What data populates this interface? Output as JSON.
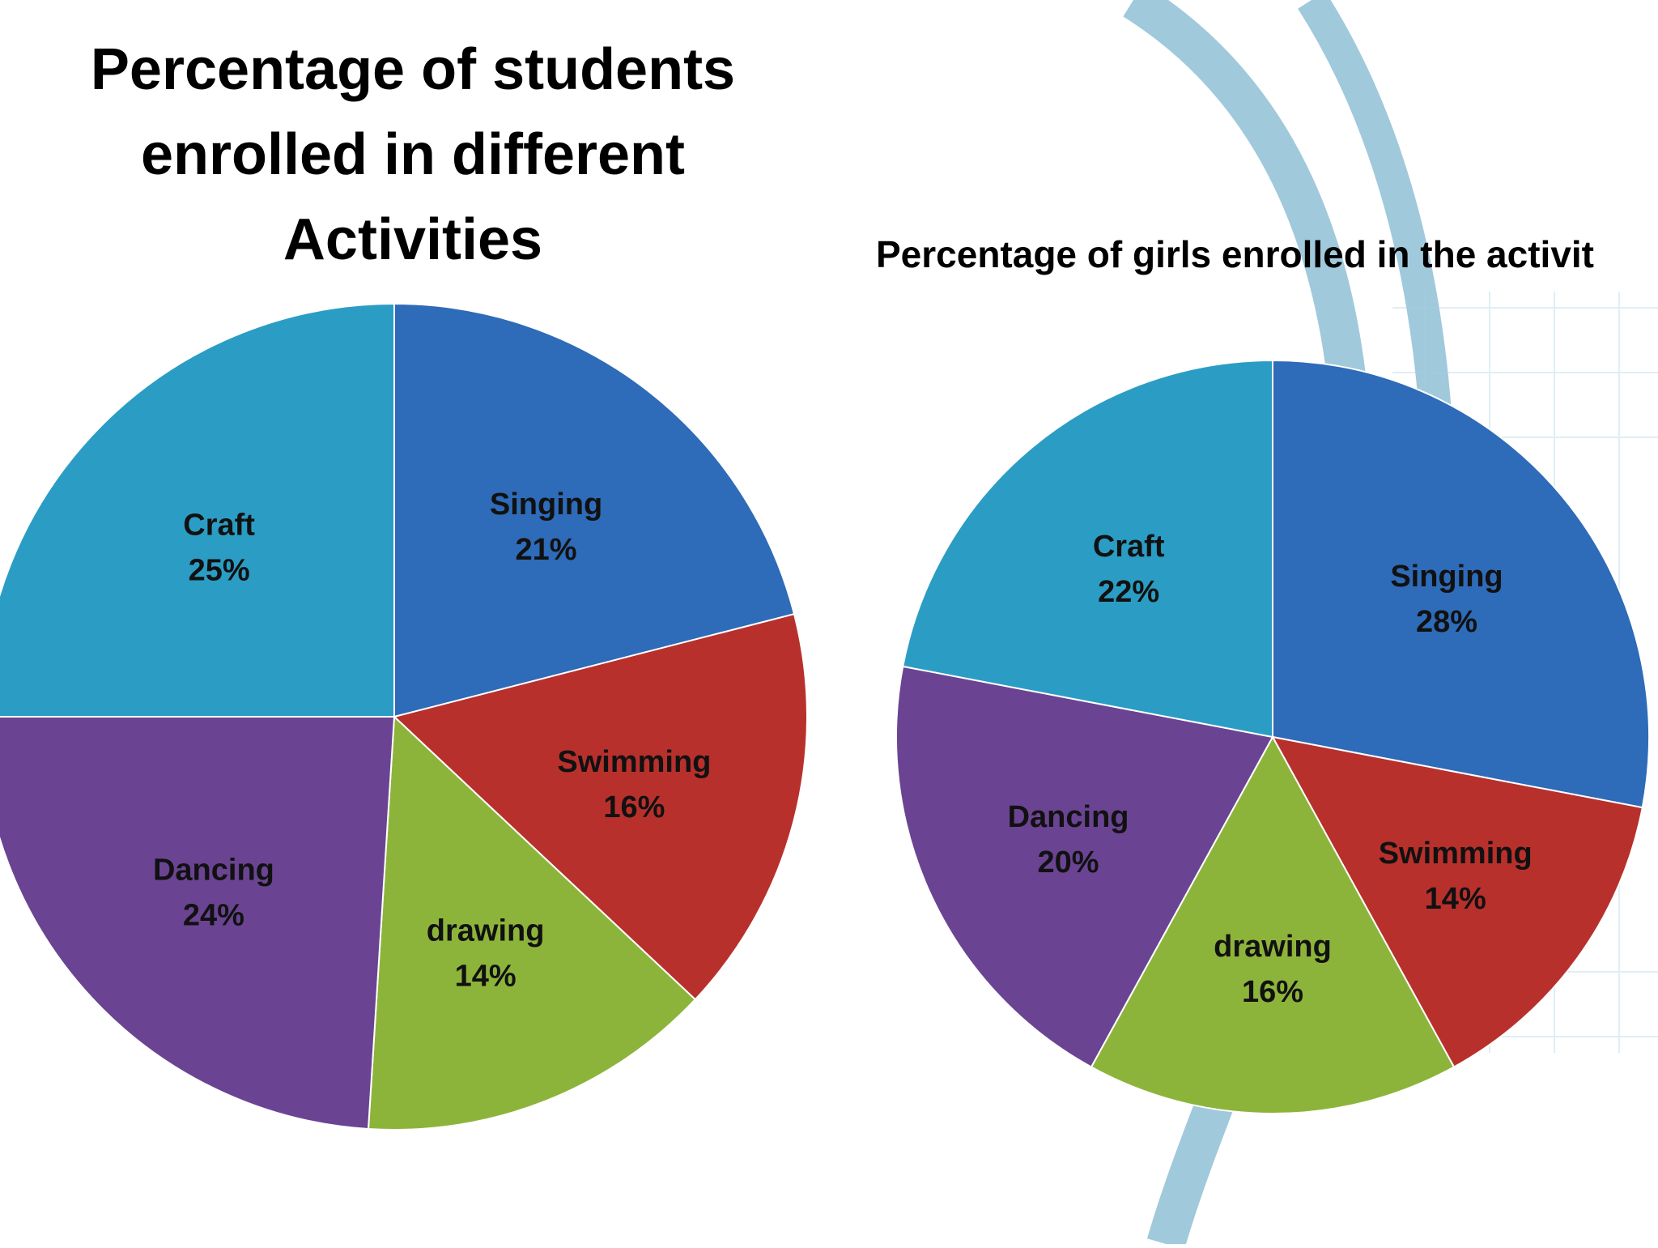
{
  "colors": {
    "singing": "#2e6bb8",
    "swimming": "#b8302c",
    "drawing": "#8db43a",
    "dancing": "#6a4492",
    "craft": "#2b9dc4",
    "background_arc": "#8fbfd6"
  },
  "chart_data": [
    {
      "type": "pie",
      "title_lines": [
        "Percentage of students",
        "enrolled in different",
        "Activities"
      ],
      "slices": [
        {
          "label": "Singing",
          "value": 21,
          "value_text": "21%",
          "color_key": "singing"
        },
        {
          "label": "Swimming",
          "value": 16,
          "value_text": "16%",
          "color_key": "swimming"
        },
        {
          "label": "drawing",
          "value": 14,
          "value_text": "14%",
          "color_key": "drawing"
        },
        {
          "label": "Dancing",
          "value": 24,
          "value_text": "24%",
          "color_key": "dancing"
        },
        {
          "label": "Craft",
          "value": 25,
          "value_text": "25%",
          "color_key": "craft"
        }
      ]
    },
    {
      "type": "pie",
      "title_lines": [
        "Percentage of girls  enrolled  in the activit"
      ],
      "slices": [
        {
          "label": "Singing",
          "value": 28,
          "value_text": "28%",
          "color_key": "singing"
        },
        {
          "label": "Swimming",
          "value": 14,
          "value_text": "14%",
          "color_key": "swimming"
        },
        {
          "label": "drawing",
          "value": 16,
          "value_text": "16%",
          "color_key": "drawing"
        },
        {
          "label": "Dancing",
          "value": 20,
          "value_text": "20%",
          "color_key": "dancing"
        },
        {
          "label": "Craft",
          "value": 22,
          "value_text": "22%",
          "color_key": "craft"
        }
      ]
    }
  ]
}
